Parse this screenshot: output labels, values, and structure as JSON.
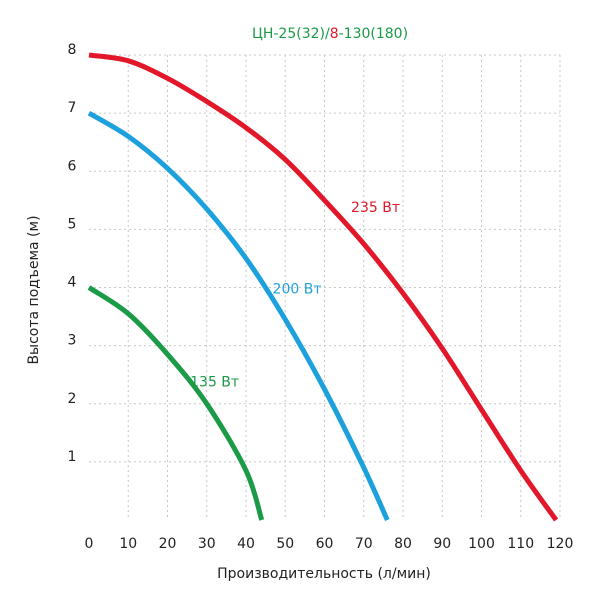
{
  "chart_data": {
    "type": "line",
    "title_parts": [
      {
        "text": "ЦН-25(32)/",
        "color": "#1b9a47"
      },
      {
        "text": "8",
        "color": "#e3172a"
      },
      {
        "text": "-130(180)",
        "color": "#1b9a47"
      }
    ],
    "xlabel": "Производительность (л/мин)",
    "ylabel": "Высота подъема (м)",
    "xlim": [
      0,
      120
    ],
    "ylim": [
      0,
      8
    ],
    "xticks": [
      "0",
      "10",
      "20",
      "30",
      "40",
      "50",
      "60",
      "70",
      "80",
      "90",
      "100",
      "110",
      "120"
    ],
    "yticks": [
      "1",
      "2",
      "3",
      "4",
      "5",
      "6",
      "7",
      "8"
    ],
    "grid": true,
    "series": [
      {
        "name": "235 Вт",
        "color": "#e3172a",
        "x": [
          0,
          10,
          20,
          30,
          40,
          50,
          60,
          70,
          80,
          90,
          100,
          110,
          119
        ],
        "y": [
          8,
          7.9,
          7.6,
          7.2,
          6.75,
          6.2,
          5.5,
          4.75,
          3.9,
          2.95,
          1.9,
          0.85,
          0
        ]
      },
      {
        "name": "200 Вт",
        "color": "#1da1dc",
        "x": [
          0,
          10,
          20,
          30,
          40,
          50,
          60,
          70,
          76
        ],
        "y": [
          7,
          6.6,
          6.05,
          5.35,
          4.5,
          3.45,
          2.25,
          0.9,
          0
        ]
      },
      {
        "name": "135 Вт",
        "color": "#1b9a47",
        "x": [
          0,
          10,
          20,
          30,
          40,
          44
        ],
        "y": [
          4,
          3.55,
          2.85,
          2.0,
          0.85,
          0
        ]
      }
    ],
    "labels": [
      {
        "text": "235 Вт",
        "color": "#e3172a",
        "x": 73,
        "y": 5.3
      },
      {
        "text": "200 Вт",
        "color": "#1da1dc",
        "x": 53,
        "y": 3.9
      },
      {
        "text": "135 Вт",
        "color": "#1b9a47",
        "x": 32,
        "y": 2.3
      }
    ]
  }
}
